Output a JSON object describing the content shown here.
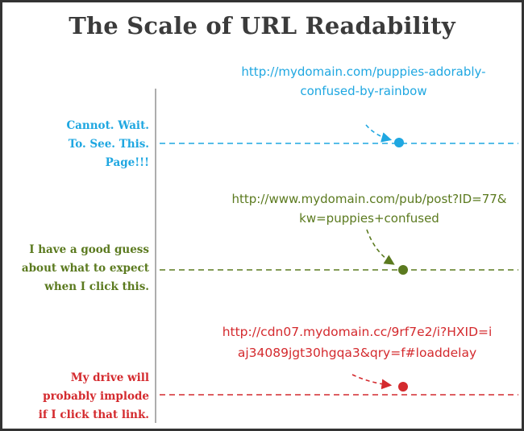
{
  "title": "The Scale of URL Readability",
  "levels": [
    {
      "label_lines": [
        "Cannot. Wait.",
        "To. See. This.",
        "Page!!!"
      ],
      "url_lines": [
        "http://mydomain.com/puppies-adorably-",
        "confused-by-rainbow"
      ],
      "color": "#1fa7e1"
    },
    {
      "label_lines": [
        "I have a good guess",
        "about what to expect",
        "when I click this."
      ],
      "url_lines": [
        "http://www.mydomain.com/pub/post?ID=77&",
        "kw=puppies+confused"
      ],
      "color": "#5b7a1f"
    },
    {
      "label_lines": [
        "My drive will",
        "probably implode",
        "if I click that link."
      ],
      "url_lines": [
        "http://cdn07.mydomain.cc/9rf7e2/i?HXID=i",
        "aj34089jgt30hgqa3&qry=f#loaddelay"
      ],
      "color": "#d42a2e"
    }
  ]
}
